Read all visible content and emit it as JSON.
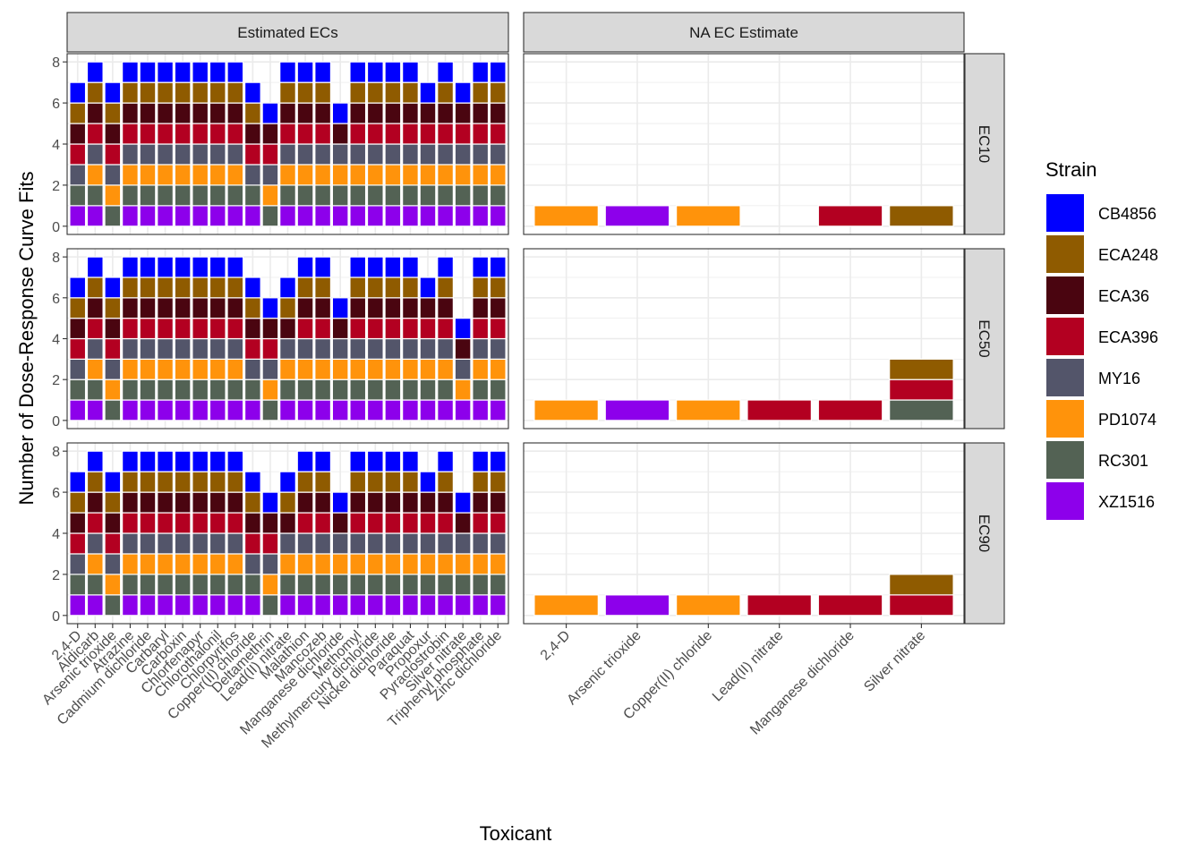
{
  "chart_data": {
    "type": "bar",
    "stacked": true,
    "faceted": true,
    "xlabel": "Toxicant",
    "ylabel": "Number of Dose-Response Curve Fits",
    "ylim": [
      0,
      8
    ],
    "yticks": [
      0,
      2,
      4,
      6,
      8
    ],
    "grid": true,
    "legend": {
      "title": "Strain",
      "position": "right",
      "entries": [
        {
          "name": "CB4856",
          "color": "#0000FF"
        },
        {
          "name": "ECA248",
          "color": "#8F5B00"
        },
        {
          "name": "ECA36",
          "color": "#4A0510"
        },
        {
          "name": "ECA396",
          "color": "#B30021"
        },
        {
          "name": "MY16",
          "color": "#53556A"
        },
        {
          "name": "PD1074",
          "color": "#FF930B"
        },
        {
          "name": "RC301",
          "color": "#536254"
        },
        {
          "name": "XZ1516",
          "color": "#8D00EB"
        }
      ]
    },
    "stack_order_bottom_to_top": [
      "XZ1516",
      "RC301",
      "PD1074",
      "MY16",
      "ECA396",
      "ECA36",
      "ECA248",
      "CB4856"
    ],
    "column_facets": [
      "Estimated ECs",
      "NA EC Estimate"
    ],
    "row_facets": [
      "EC10",
      "EC50",
      "EC90"
    ],
    "columns": [
      {
        "facet": "Estimated ECs",
        "categories": [
          "2,4-D",
          "Aldicarb",
          "Arsenic trioxide",
          "Atrazine",
          "Cadmium dichloride",
          "Carbaryl",
          "Carboxin",
          "Chlorfenapyr",
          "Chlorothalonil",
          "Chlorpyrifos",
          "Copper(II) chloride",
          "Deltamethrin",
          "Lead(II) nitrate",
          "Malathion",
          "Mancozeb",
          "Manganese dichloride",
          "Methomyl",
          "Methylmercury dichloride",
          "Nickel dichloride",
          "Paraquat",
          "Propoxur",
          "Pyraclostrobin",
          "Silver nitrate",
          "Triphenyl phosphate",
          "Zinc dichloride"
        ],
        "rows": {
          "EC10": [
            [
              "XZ1516",
              "RC301",
              "MY16",
              "ECA396",
              "ECA36",
              "ECA248",
              "CB4856"
            ],
            [
              "XZ1516",
              "RC301",
              "PD1074",
              "MY16",
              "ECA396",
              "ECA36",
              "ECA248",
              "CB4856"
            ],
            [
              "RC301",
              "PD1074",
              "MY16",
              "ECA396",
              "ECA36",
              "ECA248",
              "CB4856"
            ],
            [
              "XZ1516",
              "RC301",
              "PD1074",
              "MY16",
              "ECA396",
              "ECA36",
              "ECA248",
              "CB4856"
            ],
            [
              "XZ1516",
              "RC301",
              "PD1074",
              "MY16",
              "ECA396",
              "ECA36",
              "ECA248",
              "CB4856"
            ],
            [
              "XZ1516",
              "RC301",
              "PD1074",
              "MY16",
              "ECA396",
              "ECA36",
              "ECA248",
              "CB4856"
            ],
            [
              "XZ1516",
              "RC301",
              "PD1074",
              "MY16",
              "ECA396",
              "ECA36",
              "ECA248",
              "CB4856"
            ],
            [
              "XZ1516",
              "RC301",
              "PD1074",
              "MY16",
              "ECA396",
              "ECA36",
              "ECA248",
              "CB4856"
            ],
            [
              "XZ1516",
              "RC301",
              "PD1074",
              "MY16",
              "ECA396",
              "ECA36",
              "ECA248",
              "CB4856"
            ],
            [
              "XZ1516",
              "RC301",
              "PD1074",
              "MY16",
              "ECA396",
              "ECA36",
              "ECA248",
              "CB4856"
            ],
            [
              "XZ1516",
              "RC301",
              "MY16",
              "ECA396",
              "ECA36",
              "ECA248",
              "CB4856"
            ],
            [
              "RC301",
              "PD1074",
              "MY16",
              "ECA396",
              "ECA36",
              "CB4856"
            ],
            [
              "XZ1516",
              "RC301",
              "PD1074",
              "MY16",
              "ECA396",
              "ECA36",
              "ECA248",
              "CB4856"
            ],
            [
              "XZ1516",
              "RC301",
              "PD1074",
              "MY16",
              "ECA396",
              "ECA36",
              "ECA248",
              "CB4856"
            ],
            [
              "XZ1516",
              "RC301",
              "PD1074",
              "MY16",
              "ECA396",
              "ECA36",
              "ECA248",
              "CB4856"
            ],
            [
              "XZ1516",
              "RC301",
              "PD1074",
              "MY16",
              "ECA36",
              "CB4856"
            ],
            [
              "XZ1516",
              "RC301",
              "PD1074",
              "MY16",
              "ECA396",
              "ECA36",
              "ECA248",
              "CB4856"
            ],
            [
              "XZ1516",
              "RC301",
              "PD1074",
              "MY16",
              "ECA396",
              "ECA36",
              "ECA248",
              "CB4856"
            ],
            [
              "XZ1516",
              "RC301",
              "PD1074",
              "MY16",
              "ECA396",
              "ECA36",
              "ECA248",
              "CB4856"
            ],
            [
              "XZ1516",
              "RC301",
              "PD1074",
              "MY16",
              "ECA396",
              "ECA36",
              "ECA248",
              "CB4856"
            ],
            [
              "XZ1516",
              "RC301",
              "PD1074",
              "MY16",
              "ECA396",
              "ECA36",
              "CB4856"
            ],
            [
              "XZ1516",
              "RC301",
              "PD1074",
              "MY16",
              "ECA396",
              "ECA36",
              "ECA248",
              "CB4856"
            ],
            [
              "XZ1516",
              "RC301",
              "PD1074",
              "MY16",
              "ECA396",
              "ECA36",
              "CB4856"
            ],
            [
              "XZ1516",
              "RC301",
              "PD1074",
              "MY16",
              "ECA396",
              "ECA36",
              "ECA248",
              "CB4856"
            ],
            [
              "XZ1516",
              "RC301",
              "PD1074",
              "MY16",
              "ECA396",
              "ECA36",
              "ECA248",
              "CB4856"
            ]
          ],
          "EC50": [
            [
              "XZ1516",
              "RC301",
              "MY16",
              "ECA396",
              "ECA36",
              "ECA248",
              "CB4856"
            ],
            [
              "XZ1516",
              "RC301",
              "PD1074",
              "MY16",
              "ECA396",
              "ECA36",
              "ECA248",
              "CB4856"
            ],
            [
              "RC301",
              "PD1074",
              "MY16",
              "ECA396",
              "ECA36",
              "ECA248",
              "CB4856"
            ],
            [
              "XZ1516",
              "RC301",
              "PD1074",
              "MY16",
              "ECA396",
              "ECA36",
              "ECA248",
              "CB4856"
            ],
            [
              "XZ1516",
              "RC301",
              "PD1074",
              "MY16",
              "ECA396",
              "ECA36",
              "ECA248",
              "CB4856"
            ],
            [
              "XZ1516",
              "RC301",
              "PD1074",
              "MY16",
              "ECA396",
              "ECA36",
              "ECA248",
              "CB4856"
            ],
            [
              "XZ1516",
              "RC301",
              "PD1074",
              "MY16",
              "ECA396",
              "ECA36",
              "ECA248",
              "CB4856"
            ],
            [
              "XZ1516",
              "RC301",
              "PD1074",
              "MY16",
              "ECA396",
              "ECA36",
              "ECA248",
              "CB4856"
            ],
            [
              "XZ1516",
              "RC301",
              "PD1074",
              "MY16",
              "ECA396",
              "ECA36",
              "ECA248",
              "CB4856"
            ],
            [
              "XZ1516",
              "RC301",
              "PD1074",
              "MY16",
              "ECA396",
              "ECA36",
              "ECA248",
              "CB4856"
            ],
            [
              "XZ1516",
              "RC301",
              "MY16",
              "ECA396",
              "ECA36",
              "ECA248",
              "CB4856"
            ],
            [
              "RC301",
              "PD1074",
              "MY16",
              "ECA396",
              "ECA36",
              "CB4856"
            ],
            [
              "XZ1516",
              "RC301",
              "PD1074",
              "MY16",
              "ECA36",
              "ECA248",
              "CB4856"
            ],
            [
              "XZ1516",
              "RC301",
              "PD1074",
              "MY16",
              "ECA396",
              "ECA36",
              "ECA248",
              "CB4856"
            ],
            [
              "XZ1516",
              "RC301",
              "PD1074",
              "MY16",
              "ECA396",
              "ECA36",
              "ECA248",
              "CB4856"
            ],
            [
              "XZ1516",
              "RC301",
              "PD1074",
              "MY16",
              "ECA36",
              "CB4856"
            ],
            [
              "XZ1516",
              "RC301",
              "PD1074",
              "MY16",
              "ECA396",
              "ECA36",
              "ECA248",
              "CB4856"
            ],
            [
              "XZ1516",
              "RC301",
              "PD1074",
              "MY16",
              "ECA396",
              "ECA36",
              "ECA248",
              "CB4856"
            ],
            [
              "XZ1516",
              "RC301",
              "PD1074",
              "MY16",
              "ECA396",
              "ECA36",
              "ECA248",
              "CB4856"
            ],
            [
              "XZ1516",
              "RC301",
              "PD1074",
              "MY16",
              "ECA396",
              "ECA36",
              "ECA248",
              "CB4856"
            ],
            [
              "XZ1516",
              "RC301",
              "PD1074",
              "MY16",
              "ECA396",
              "ECA36",
              "CB4856"
            ],
            [
              "XZ1516",
              "RC301",
              "PD1074",
              "MY16",
              "ECA396",
              "ECA36",
              "ECA248",
              "CB4856"
            ],
            [
              "XZ1516",
              "PD1074",
              "MY16",
              "ECA36",
              "CB4856"
            ],
            [
              "XZ1516",
              "RC301",
              "PD1074",
              "MY16",
              "ECA396",
              "ECA36",
              "ECA248",
              "CB4856"
            ],
            [
              "XZ1516",
              "RC301",
              "PD1074",
              "MY16",
              "ECA396",
              "ECA36",
              "ECA248",
              "CB4856"
            ]
          ],
          "EC90": [
            [
              "XZ1516",
              "RC301",
              "MY16",
              "ECA396",
              "ECA36",
              "ECA248",
              "CB4856"
            ],
            [
              "XZ1516",
              "RC301",
              "PD1074",
              "MY16",
              "ECA396",
              "ECA36",
              "ECA248",
              "CB4856"
            ],
            [
              "RC301",
              "PD1074",
              "MY16",
              "ECA396",
              "ECA36",
              "ECA248",
              "CB4856"
            ],
            [
              "XZ1516",
              "RC301",
              "PD1074",
              "MY16",
              "ECA396",
              "ECA36",
              "ECA248",
              "CB4856"
            ],
            [
              "XZ1516",
              "RC301",
              "PD1074",
              "MY16",
              "ECA396",
              "ECA36",
              "ECA248",
              "CB4856"
            ],
            [
              "XZ1516",
              "RC301",
              "PD1074",
              "MY16",
              "ECA396",
              "ECA36",
              "ECA248",
              "CB4856"
            ],
            [
              "XZ1516",
              "RC301",
              "PD1074",
              "MY16",
              "ECA396",
              "ECA36",
              "ECA248",
              "CB4856"
            ],
            [
              "XZ1516",
              "RC301",
              "PD1074",
              "MY16",
              "ECA396",
              "ECA36",
              "ECA248",
              "CB4856"
            ],
            [
              "XZ1516",
              "RC301",
              "PD1074",
              "MY16",
              "ECA396",
              "ECA36",
              "ECA248",
              "CB4856"
            ],
            [
              "XZ1516",
              "RC301",
              "PD1074",
              "MY16",
              "ECA396",
              "ECA36",
              "ECA248",
              "CB4856"
            ],
            [
              "XZ1516",
              "RC301",
              "MY16",
              "ECA396",
              "ECA36",
              "ECA248",
              "CB4856"
            ],
            [
              "RC301",
              "PD1074",
              "MY16",
              "ECA396",
              "ECA36",
              "CB4856"
            ],
            [
              "XZ1516",
              "RC301",
              "PD1074",
              "MY16",
              "ECA36",
              "ECA248",
              "CB4856"
            ],
            [
              "XZ1516",
              "RC301",
              "PD1074",
              "MY16",
              "ECA396",
              "ECA36",
              "ECA248",
              "CB4856"
            ],
            [
              "XZ1516",
              "RC301",
              "PD1074",
              "MY16",
              "ECA396",
              "ECA36",
              "ECA248",
              "CB4856"
            ],
            [
              "XZ1516",
              "RC301",
              "PD1074",
              "MY16",
              "ECA36",
              "CB4856"
            ],
            [
              "XZ1516",
              "RC301",
              "PD1074",
              "MY16",
              "ECA396",
              "ECA36",
              "ECA248",
              "CB4856"
            ],
            [
              "XZ1516",
              "RC301",
              "PD1074",
              "MY16",
              "ECA396",
              "ECA36",
              "ECA248",
              "CB4856"
            ],
            [
              "XZ1516",
              "RC301",
              "PD1074",
              "MY16",
              "ECA396",
              "ECA36",
              "ECA248",
              "CB4856"
            ],
            [
              "XZ1516",
              "RC301",
              "PD1074",
              "MY16",
              "ECA396",
              "ECA36",
              "ECA248",
              "CB4856"
            ],
            [
              "XZ1516",
              "RC301",
              "PD1074",
              "MY16",
              "ECA396",
              "ECA36",
              "CB4856"
            ],
            [
              "XZ1516",
              "RC301",
              "PD1074",
              "MY16",
              "ECA396",
              "ECA36",
              "ECA248",
              "CB4856"
            ],
            [
              "XZ1516",
              "RC301",
              "PD1074",
              "MY16",
              "ECA36",
              "CB4856"
            ],
            [
              "XZ1516",
              "RC301",
              "PD1074",
              "MY16",
              "ECA396",
              "ECA36",
              "ECA248",
              "CB4856"
            ],
            [
              "XZ1516",
              "RC301",
              "PD1074",
              "MY16",
              "ECA396",
              "ECA36",
              "ECA248",
              "CB4856"
            ]
          ]
        }
      },
      {
        "facet": "NA EC Estimate",
        "categories": [
          "2,4-D",
          "Arsenic trioxide",
          "Copper(II) chloride",
          "Lead(II) nitrate",
          "Manganese dichloride",
          "Silver nitrate"
        ],
        "rows": {
          "EC10": [
            [
              "PD1074"
            ],
            [
              "XZ1516"
            ],
            [
              "PD1074"
            ],
            [],
            [
              "ECA396"
            ],
            [
              "ECA248"
            ]
          ],
          "EC50": [
            [
              "PD1074"
            ],
            [
              "XZ1516"
            ],
            [
              "PD1074"
            ],
            [
              "ECA396"
            ],
            [
              "ECA396"
            ],
            [
              "RC301",
              "ECA396",
              "ECA248"
            ]
          ],
          "EC90": [
            [
              "PD1074"
            ],
            [
              "XZ1516"
            ],
            [
              "PD1074"
            ],
            [
              "ECA396"
            ],
            [
              "ECA396"
            ],
            [
              "ECA396",
              "ECA248"
            ]
          ]
        }
      }
    ]
  }
}
